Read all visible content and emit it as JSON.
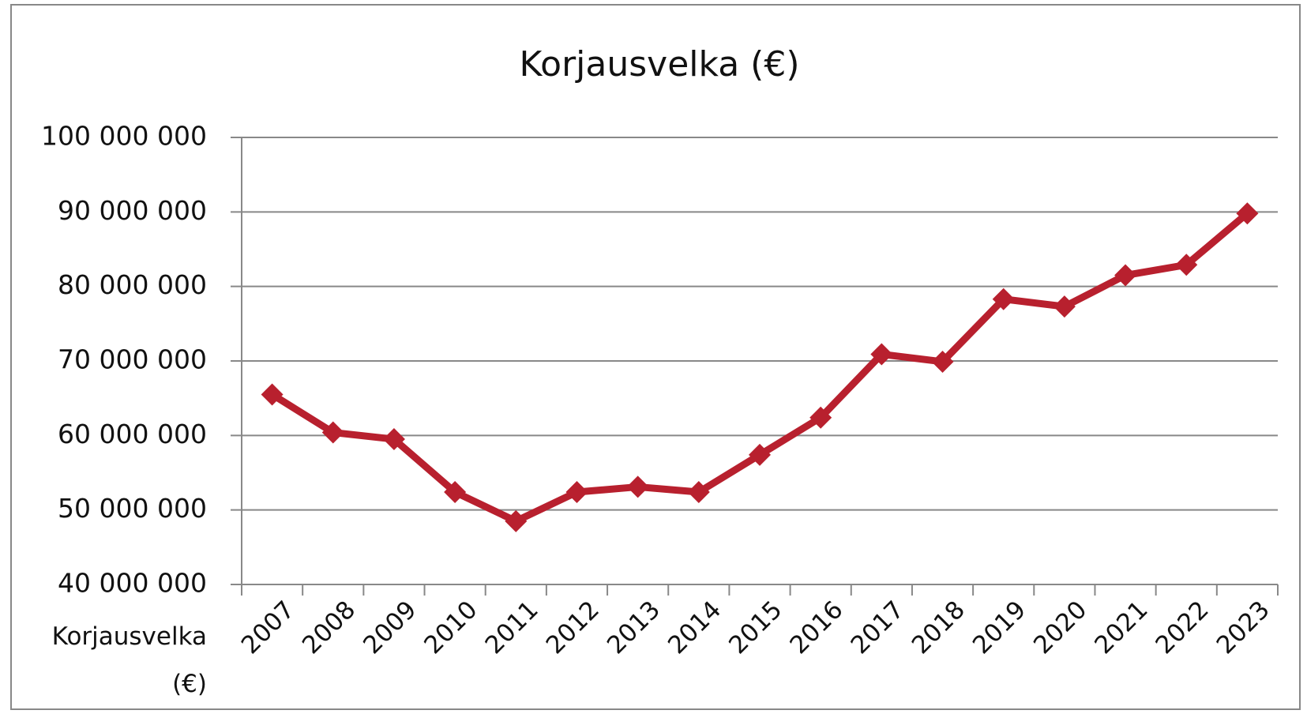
{
  "chart_data": {
    "type": "line",
    "title": "Korjausvelka (€)",
    "categories": [
      "2007",
      "2008",
      "2009",
      "2010",
      "2011",
      "2012",
      "2013",
      "2014",
      "2015",
      "2016",
      "2017",
      "2018",
      "2019",
      "2020",
      "2021",
      "2022",
      "2023"
    ],
    "series": [
      {
        "name": "Korjausvelka (€)",
        "color": "#b8202e",
        "values": [
          65500000,
          60400000,
          59500000,
          52400000,
          48500000,
          52400000,
          53100000,
          52400000,
          57400000,
          62400000,
          70900000,
          69900000,
          78300000,
          77300000,
          81500000,
          82900000,
          89800000
        ]
      }
    ],
    "ylim": [
      40000000,
      100000000
    ],
    "yticks": [
      {
        "value": 40000000,
        "label": "40 000 000"
      },
      {
        "value": 50000000,
        "label": "50 000 000"
      },
      {
        "value": 60000000,
        "label": "60 000 000"
      },
      {
        "value": 70000000,
        "label": "70 000 000"
      },
      {
        "value": 80000000,
        "label": "80 000 000"
      },
      {
        "value": 90000000,
        "label": "90 000 000"
      },
      {
        "value": 100000000,
        "label": "100 000 000"
      }
    ],
    "grid": true
  }
}
